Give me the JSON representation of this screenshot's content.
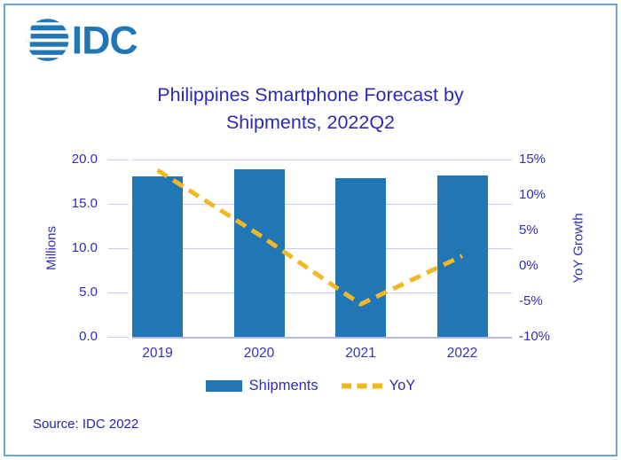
{
  "logo": {
    "text": "IDC"
  },
  "title": {
    "line1": "Philippines Smartphone Forecast by",
    "line2": "Shipments, 2022Q2"
  },
  "source": "Source: IDC 2022",
  "colors": {
    "bar_blue": "#2176B5",
    "line_yellow": "#F2B824",
    "navy_text": "#2E2EB8",
    "gridline": "#C9C9F1",
    "frame_border": "#6BA2D8"
  },
  "chart_data": {
    "type": "bar",
    "subtype": "bar-with-line-overlay",
    "title": "Philippines Smartphone Forecast by Shipments, 2022Q2",
    "categories": [
      "2019",
      "2020",
      "2021",
      "2022"
    ],
    "series": [
      {
        "name": "Shipments",
        "type": "bar",
        "axis": "left",
        "values": [
          18.1,
          18.9,
          17.9,
          18.2
        ],
        "color": "#2176B5"
      },
      {
        "name": "YoY",
        "type": "line",
        "style": "dashed",
        "axis": "right",
        "values": [
          13.5,
          4.4,
          -5.4,
          1.4
        ],
        "color": "#F2B824"
      }
    ],
    "left_axis": {
      "label": "Millions",
      "min": 0,
      "max": 20,
      "ticks": [
        "20.0",
        "15.0",
        "10.0",
        "5.0",
        "0.0"
      ]
    },
    "right_axis": {
      "label": "YoY Growth",
      "min": -10,
      "max": 15,
      "ticks": [
        "15%",
        "10%",
        "5%",
        "0%",
        "-5%",
        "-10%"
      ]
    },
    "grid": "horizontal",
    "legend_position": "bottom",
    "legend": [
      {
        "label": "Shipments",
        "swatch": "bar"
      },
      {
        "label": "YoY",
        "swatch": "dash"
      }
    ]
  }
}
